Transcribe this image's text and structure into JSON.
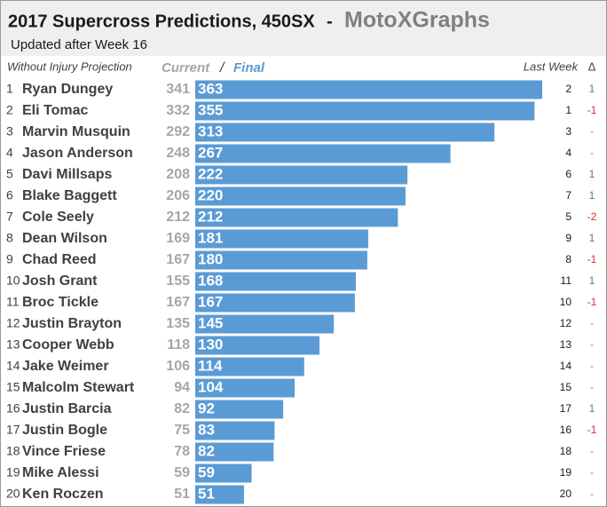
{
  "chart_data": {
    "type": "bar",
    "title": "2017 Supercross Predictions, 450SX",
    "separator": "-",
    "site": "MotoXGraphs",
    "subtitle": "Updated after Week 16",
    "header": {
      "projection": "Without Injury Projection",
      "current": "Current",
      "slash": "/",
      "final": "Final",
      "last_week": "Last Week",
      "delta": "Δ"
    },
    "ranks": [
      1,
      2,
      3,
      4,
      5,
      6,
      7,
      8,
      9,
      10,
      11,
      12,
      13,
      14,
      15,
      16,
      17,
      18,
      19,
      20
    ],
    "categories": [
      "Ryan Dungey",
      "Eli Tomac",
      "Marvin Musquin",
      "Jason Anderson",
      "Davi Millsaps",
      "Blake Baggett",
      "Cole Seely",
      "Dean Wilson",
      "Chad Reed",
      "Josh Grant",
      "Broc Tickle",
      "Justin Brayton",
      "Cooper Webb",
      "Jake Weimer",
      "Malcolm Stewart",
      "Justin Barcia",
      "Justin Bogle",
      "Vince Friese",
      "Mike Alessi",
      "Ken Roczen"
    ],
    "current": [
      341,
      332,
      292,
      248,
      208,
      206,
      212,
      169,
      167,
      155,
      167,
      135,
      118,
      106,
      94,
      82,
      75,
      78,
      59,
      51
    ],
    "values": [
      363,
      355,
      313,
      267,
      222,
      220,
      212,
      181,
      180,
      168,
      167,
      145,
      130,
      114,
      104,
      92,
      83,
      82,
      59,
      51
    ],
    "last_week": [
      2,
      1,
      3,
      4,
      6,
      7,
      5,
      9,
      8,
      11,
      10,
      12,
      13,
      14,
      15,
      17,
      16,
      18,
      19,
      20
    ],
    "delta": [
      1,
      -1,
      "-",
      "-",
      1,
      1,
      -2,
      1,
      -1,
      1,
      -1,
      "-",
      "-",
      "-",
      "-",
      1,
      -1,
      "-",
      "-",
      "-"
    ],
    "color": "#5b9bd5",
    "xlim": [
      0,
      363
    ]
  }
}
